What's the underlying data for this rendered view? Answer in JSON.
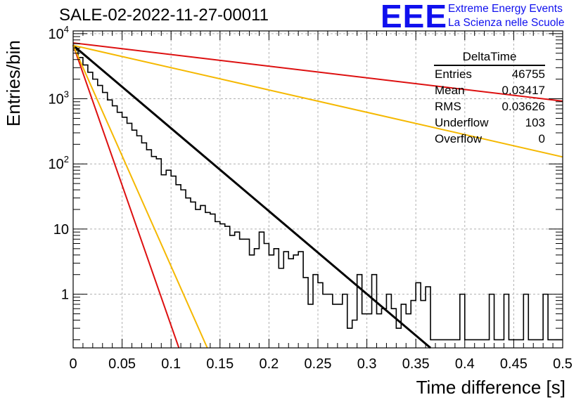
{
  "page": {
    "title": "SALE-02-2022-11-27-00011",
    "brand": {
      "logo": "EEE",
      "line1": "Extreme Energy Events",
      "line2": "La Scienza nelle Scuole"
    }
  },
  "stats": {
    "title": "DeltaTime",
    "rows": [
      {
        "label": "Entries",
        "value": "46755"
      },
      {
        "label": "Mean",
        "value": "0.03417"
      },
      {
        "label": "RMS",
        "value": "0.03626"
      },
      {
        "label": "Underflow",
        "value": "103"
      },
      {
        "label": "Overflow",
        "value": "0"
      }
    ]
  },
  "chart_data": {
    "type": "line",
    "xlabel": "Time difference [s]",
    "ylabel": "Entries/bin",
    "xlim": [
      0,
      0.5
    ],
    "ylim": [
      0.15,
      11000
    ],
    "yscale": "log",
    "grid": true,
    "x_ticks": [
      0,
      0.05,
      0.1,
      0.15,
      0.2,
      0.25,
      0.3,
      0.35,
      0.4,
      0.45,
      0.5
    ],
    "x_tick_labels": [
      "0",
      "0.05",
      "0.1",
      "0.15",
      "0.2",
      "0.25",
      "0.3",
      "0.35",
      "0.4",
      "0.45",
      "0.5"
    ],
    "y_ticks": [
      1,
      10,
      100,
      1000,
      10000
    ],
    "y_tick_labels": [
      "1",
      "10",
      "10^2",
      "10^3",
      "10^4"
    ],
    "histogram": {
      "bin_width": 0.005,
      "color": "#000000",
      "values": [
        5600,
        4300,
        3300,
        2550,
        2000,
        1600,
        1250,
        960,
        780,
        620,
        520,
        420,
        330,
        270,
        210,
        165,
        130,
        120,
        68,
        80,
        65,
        48,
        40,
        30,
        26,
        20,
        23,
        18,
        17,
        13,
        12,
        11,
        8,
        9,
        7,
        7,
        4,
        5,
        9,
        6,
        4,
        5,
        2.5,
        4.5,
        3.5,
        4,
        4.5,
        1.8,
        0.7,
        2,
        1.5,
        1,
        1,
        0.7,
        0.7,
        1,
        0.3,
        0.4,
        2,
        0.5,
        0.5,
        2,
        0.5,
        0.6,
        1,
        0.6,
        0.3,
        0.7,
        0.5,
        0.8,
        1.5,
        0.8,
        1.3,
        0.2,
        0.2,
        0.2,
        0.2,
        0.2,
        0.2,
        1,
        0.2,
        0.2,
        0.2,
        0.2,
        0.2,
        1,
        0.2,
        0.2,
        1,
        0.2,
        0.2,
        0.2,
        1,
        0.2,
        0.2,
        0.2,
        1,
        0.2,
        0.2,
        0.2
      ]
    },
    "series": [
      {
        "color": "#000000",
        "points": [
          [
            0,
            6600
          ],
          [
            0.365,
            0.15
          ]
        ]
      },
      {
        "color": "#dd1010",
        "points": [
          [
            0,
            7200
          ],
          [
            0.5,
            920
          ]
        ]
      },
      {
        "color": "#f5b800",
        "points": [
          [
            0,
            6600
          ],
          [
            0.5,
            128
          ]
        ]
      },
      {
        "color": "#dd1010",
        "points": [
          [
            0,
            6700
          ],
          [
            0.108,
            0.15
          ]
        ]
      },
      {
        "color": "#f5b800",
        "points": [
          [
            0,
            6600
          ],
          [
            0.137,
            0.15
          ]
        ]
      }
    ]
  }
}
